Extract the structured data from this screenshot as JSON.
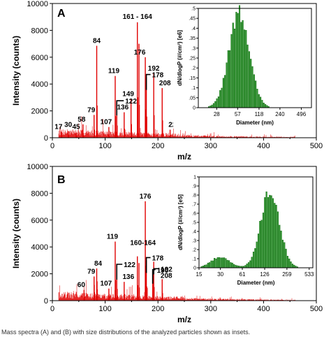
{
  "caption": "Mass spectra (A) and (B) with size distributions of the analyzed particles shown as insets.",
  "colors": {
    "spectrum": "#e00000",
    "histogram": "#2e9b2e",
    "histogram_dark": "#0f5f0f",
    "axis": "#000000"
  },
  "chart_data": [
    {
      "type": "line",
      "panel_label": "A",
      "xlabel": "m/z",
      "ylabel": "Intensity (counts)",
      "xlim": [
        0,
        500
      ],
      "ylim": [
        0,
        10000
      ],
      "xticks": [
        0,
        100,
        200,
        300,
        400,
        500
      ],
      "yticks": [
        0,
        2000,
        4000,
        6000,
        8000,
        10000
      ],
      "peaks": [
        {
          "x": 17,
          "y": 450
        },
        {
          "x": 30,
          "y": 500
        },
        {
          "x": 45,
          "y": 350
        },
        {
          "x": 58,
          "y": 1000
        },
        {
          "x": 79,
          "y": 1700
        },
        {
          "x": 84,
          "y": 6850
        },
        {
          "x": 107,
          "y": 800
        },
        {
          "x": 119,
          "y": 4600
        },
        {
          "x": 122,
          "y": 2600
        },
        {
          "x": 136,
          "y": 1900
        },
        {
          "x": 149,
          "y": 2900
        },
        {
          "x": 161,
          "y": 8600
        },
        {
          "x": 164,
          "y": 7000
        },
        {
          "x": 176,
          "y": 6000
        },
        {
          "x": 178,
          "y": 4500
        },
        {
          "x": 192,
          "y": 4800
        },
        {
          "x": 208,
          "y": 3700
        },
        {
          "x": 223,
          "y": 600
        }
      ],
      "annotations": [
        {
          "text": "17",
          "x": 17,
          "y": 450
        },
        {
          "text": "30",
          "x": 30,
          "y": 500
        },
        {
          "text": "45",
          "x": 45,
          "y": 350
        },
        {
          "text": "58",
          "x": 58,
          "y": 1000
        },
        {
          "text": "79",
          "x": 79,
          "y": 1700
        },
        {
          "text": "84",
          "x": 84,
          "y": 6850
        },
        {
          "text": "107",
          "x": 107,
          "y": 800
        },
        {
          "text": "119",
          "x": 119,
          "y": 4600
        },
        {
          "text": "122",
          "x": 122,
          "y": 2600
        },
        {
          "text": "136",
          "x": 136,
          "y": 1900
        },
        {
          "text": "149",
          "x": 149,
          "y": 2900
        },
        {
          "text": "161 - 164",
          "x": 161,
          "y": 8600
        },
        {
          "text": "176",
          "x": 176,
          "y": 6000
        },
        {
          "text": "178",
          "x": 178,
          "y": 4500
        },
        {
          "text": "192",
          "x": 192,
          "y": 4800
        },
        {
          "text": "208",
          "x": 208,
          "y": 3700
        },
        {
          "text": "223",
          "x": 223,
          "y": 600
        }
      ],
      "inset": {
        "type": "bar",
        "xlabel": "Diameter (nm)",
        "ylabel": "dN/dlogP (#/cm³) [e6]",
        "log_x": true,
        "xlim": [
          15,
          700
        ],
        "xticks": [
          28,
          57,
          118,
          240,
          496
        ],
        "ylim": [
          0,
          0.5
        ],
        "yticks": [
          0,
          0.05,
          0.1,
          0.15,
          0.2,
          0.25,
          0.3,
          0.35,
          0.4,
          0.45,
          0.5
        ],
        "mode_diameter": 60,
        "peak_value": 0.47,
        "log_sigma": 0.15
      }
    },
    {
      "type": "line",
      "panel_label": "B",
      "xlabel": "m/z",
      "ylabel": "Intensity (counts)",
      "xlim": [
        0,
        500
      ],
      "ylim": [
        0,
        10000
      ],
      "xticks": [
        0,
        100,
        200,
        300,
        400,
        500
      ],
      "yticks": [
        0,
        2000,
        4000,
        6000,
        8000,
        10000
      ],
      "peaks": [
        {
          "x": 60,
          "y": 800
        },
        {
          "x": 79,
          "y": 1800
        },
        {
          "x": 84,
          "y": 2400
        },
        {
          "x": 107,
          "y": 900
        },
        {
          "x": 119,
          "y": 4400
        },
        {
          "x": 122,
          "y": 2500
        },
        {
          "x": 136,
          "y": 1400
        },
        {
          "x": 161,
          "y": 3300
        },
        {
          "x": 164,
          "y": 2800
        },
        {
          "x": 176,
          "y": 7400
        },
        {
          "x": 178,
          "y": 3000
        },
        {
          "x": 190,
          "y": 2200
        },
        {
          "x": 192,
          "y": 2900
        },
        {
          "x": 208,
          "y": 1600
        }
      ],
      "annotations": [
        {
          "text": "60",
          "x": 60,
          "y": 800
        },
        {
          "text": "79",
          "x": 79,
          "y": 1800
        },
        {
          "text": "84",
          "x": 84,
          "y": 2400
        },
        {
          "text": "107",
          "x": 107,
          "y": 900
        },
        {
          "text": "119",
          "x": 119,
          "y": 4400
        },
        {
          "text": "122",
          "x": 122,
          "y": 2500
        },
        {
          "text": "136",
          "x": 136,
          "y": 1400
        },
        {
          "text": "160-164",
          "x": 161,
          "y": 3300
        },
        {
          "text": "176",
          "x": 176,
          "y": 7400
        },
        {
          "text": "178",
          "x": 178,
          "y": 3000
        },
        {
          "text": "190",
          "x": 190,
          "y": 2200
        },
        {
          "text": "192",
          "x": 192,
          "y": 2900
        },
        {
          "text": "208",
          "x": 208,
          "y": 1600
        }
      ],
      "inset": {
        "type": "bar",
        "xlabel": "Diameter (nm)",
        "ylabel": "dN/dlogP (#/cm³) [e5]",
        "log_x": true,
        "xlim": [
          15,
          600
        ],
        "xticks": [
          15,
          30,
          61,
          126,
          259,
          533
        ],
        "ylim": [
          0,
          1.0
        ],
        "yticks": [
          0,
          0.1,
          0.2,
          0.3,
          0.4,
          0.5,
          0.6,
          0.7,
          0.8,
          0.9,
          1.0
        ],
        "modes": [
          {
            "center": 30,
            "peak": 0.12,
            "log_sigma": 0.13
          },
          {
            "center": 150,
            "peak": 0.87,
            "log_sigma": 0.13
          }
        ]
      }
    }
  ]
}
